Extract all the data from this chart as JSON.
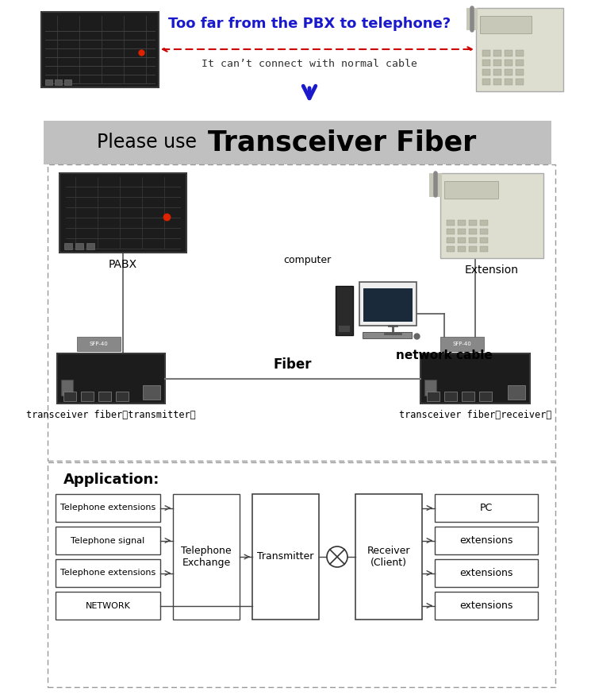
{
  "bg_color": "#ffffff",
  "gray_banner_color": "#c0c0c0",
  "dashed_box_color": "#999999",
  "title_normal": "Please use ",
  "title_bold": "Transceiver Fiber",
  "question_text": "Too far from the PBX to telephone?",
  "subtitle_text": "It can’t connect with normal cable",
  "question_color": "#1a1acc",
  "arrow_red_color": "#cc0000",
  "arrow_blue_color": "#1a1acc",
  "fiber_label": "Fiber",
  "pabx_label": "PABX",
  "extension_label": "Extension",
  "computer_label": "computer",
  "network_cable_label": "network cable",
  "transmitter_label": "transceiver fiber（transmitter）",
  "receiver_label": "transceiver fiber（receiver）",
  "app_title": "Application:",
  "left_boxes": [
    "Telephone extensions",
    "Telephone signal",
    "Telephone extensions",
    "NETWORK"
  ],
  "center_box1": "Telephone\nExchange",
  "center_box2": "Transmitter",
  "center_box3": "Receiver\n(Client)",
  "right_boxes": [
    "PC",
    "extensions",
    "extensions",
    "extensions"
  ],
  "line_color": "#555555",
  "box_edge_color": "#555555"
}
